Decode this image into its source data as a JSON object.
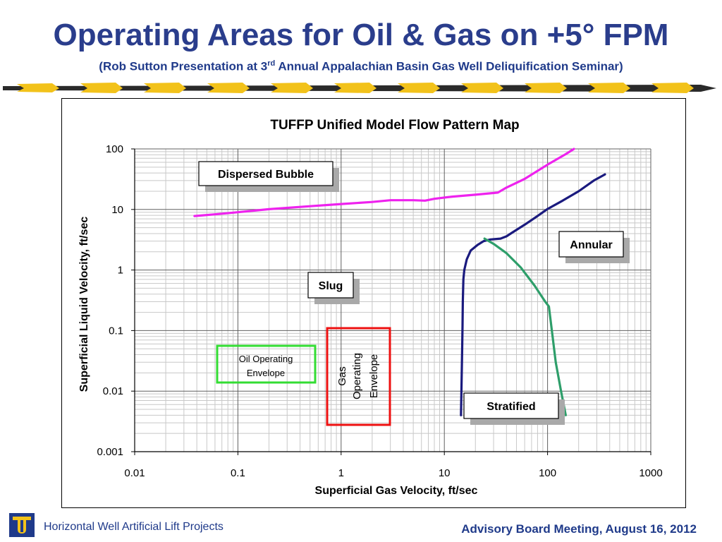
{
  "slide": {
    "title": "Operating Areas for Oil & Gas on +5° FPM",
    "subtitle_pre": "(Rob Sutton Presentation at 3",
    "subtitle_sup": "rd",
    "subtitle_post": " Annual Appalachian Basin Gas Well Deliquification Seminar)",
    "footer_left": "Horizontal Well Artificial Lift Projects",
    "footer_right": "Advisory Board Meeting, August 16, 2012",
    "logo_icon": "tulsa-u-logo-icon",
    "banner_icon": "yellow-arrow-banner-icon"
  },
  "chart_data": {
    "type": "line",
    "title": "TUFFP Unified Model Flow Pattern Map",
    "xlabel": "Superficial Gas Velocity, ft/sec",
    "ylabel": "Superficial Liquid Velocity, ft/sec",
    "xscale": "log",
    "yscale": "log",
    "xlim": [
      0.01,
      1000
    ],
    "ylim": [
      0.001,
      100
    ],
    "xticks": [
      "0.01",
      "0.1",
      "1",
      "10",
      "100",
      "1000"
    ],
    "yticks": [
      "100",
      "10",
      "1",
      "0.1",
      "0.01",
      "0.001"
    ],
    "grid": true,
    "series": [
      {
        "color": "#ee22ee",
        "points": [
          [
            0.038,
            7.8
          ],
          [
            0.06,
            8.3
          ],
          [
            0.1,
            9.0
          ],
          [
            0.2,
            10.1
          ],
          [
            0.5,
            11.3
          ],
          [
            1,
            12.3
          ],
          [
            2,
            13.3
          ],
          [
            3,
            14.2
          ],
          [
            5,
            14.2
          ],
          [
            6.5,
            14.0
          ],
          [
            8,
            15.0
          ],
          [
            12,
            16.3
          ],
          [
            20,
            17.5
          ],
          [
            33,
            19
          ],
          [
            40,
            23
          ],
          [
            60,
            32
          ],
          [
            100,
            55
          ],
          [
            150,
            82
          ],
          [
            180,
            100
          ]
        ]
      },
      {
        "color": "#1a1a7e",
        "points": [
          [
            14.5,
            0.004
          ],
          [
            14.7,
            0.015
          ],
          [
            14.9,
            0.06
          ],
          [
            15.0,
            0.12
          ],
          [
            15.1,
            0.3
          ],
          [
            15.3,
            0.7
          ],
          [
            15.6,
            1.0
          ],
          [
            16.5,
            1.5
          ],
          [
            18,
            2.1
          ],
          [
            21,
            2.6
          ],
          [
            24,
            3.0
          ],
          [
            28,
            3.2
          ],
          [
            35,
            3.3
          ],
          [
            40,
            3.6
          ],
          [
            45,
            4.1
          ],
          [
            60,
            5.6
          ],
          [
            80,
            7.8
          ],
          [
            100,
            10.2
          ],
          [
            140,
            14
          ],
          [
            200,
            20
          ],
          [
            280,
            30
          ],
          [
            360,
            38
          ]
        ]
      },
      {
        "color": "#2e9e6a",
        "points": [
          [
            24.5,
            3.3
          ],
          [
            30,
            2.7
          ],
          [
            40,
            1.9
          ],
          [
            55,
            1.1
          ],
          [
            75,
            0.55
          ],
          [
            95,
            0.3
          ],
          [
            103,
            0.25
          ],
          [
            110,
            0.1
          ],
          [
            120,
            0.03
          ],
          [
            135,
            0.01
          ],
          [
            150,
            0.004
          ]
        ]
      }
    ],
    "annotations": [
      {
        "text": "Dispersed Bubble"
      },
      {
        "text": "Annular"
      },
      {
        "text": "Slug"
      },
      {
        "text": "Stratified"
      }
    ],
    "envelopes": [
      {
        "text": "Oil Operating Envelope",
        "line1": "Oil Operating",
        "line2": "Envelope",
        "color": "#33dd33"
      },
      {
        "text": "Gas Operating Envelope",
        "line1": "Gas",
        "line2": "Operating",
        "line3": "Envelope",
        "color": "#ee1111"
      }
    ]
  }
}
